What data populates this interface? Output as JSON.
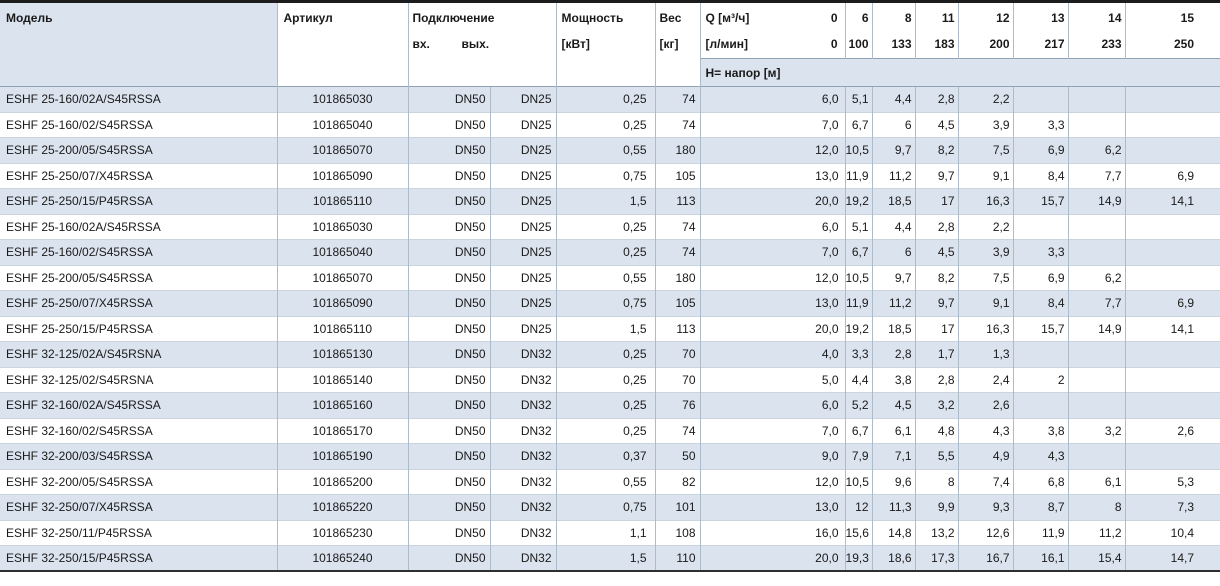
{
  "colors": {
    "shaded": "#dae3ee",
    "grid": "#aebcca",
    "rowline": "#c9d4e0",
    "hline": "#8fa2b5",
    "dark": "#1c1c1c",
    "text": "#1a1a1a"
  },
  "table": {
    "headers": {
      "model": "Модель",
      "article": "Артикул",
      "connection": "Подключение",
      "inlet": "вх.",
      "outlet": "вых.",
      "power": [
        "Мощность",
        "[кВт]"
      ],
      "weight": [
        "Вес",
        "[кг]"
      ],
      "q_m3h_label": "Q [м³/ч]",
      "q_m3h_zero": "0",
      "q_lmin_label": "[л/мин]",
      "q_lmin_zero": "0",
      "head_band": "Н= напор [м]",
      "flow_columns": [
        {
          "m3h": "6",
          "lmin": "100"
        },
        {
          "m3h": "8",
          "lmin": "133"
        },
        {
          "m3h": "11",
          "lmin": "183"
        },
        {
          "m3h": "12",
          "lmin": "200"
        },
        {
          "m3h": "13",
          "lmin": "217"
        },
        {
          "m3h": "14",
          "lmin": "233"
        },
        {
          "m3h": "15",
          "lmin": "250"
        }
      ]
    },
    "rows": [
      {
        "model": "ESHF 25-160/02A/S45RSSA",
        "article": "101865030",
        "inlet": "DN50",
        "outlet": "DN25",
        "power": "0,25",
        "weight": "74",
        "head": [
          "6,0",
          "5,1",
          "4,4",
          "2,8",
          "2,2",
          "",
          "",
          ""
        ]
      },
      {
        "model": "ESHF 25-160/02/S45RSSA",
        "article": "101865040",
        "inlet": "DN50",
        "outlet": "DN25",
        "power": "0,25",
        "weight": "74",
        "head": [
          "7,0",
          "6,7",
          "6",
          "4,5",
          "3,9",
          "3,3",
          "",
          ""
        ]
      },
      {
        "model": "ESHF 25-200/05/S45RSSA",
        "article": "101865070",
        "inlet": "DN50",
        "outlet": "DN25",
        "power": "0,55",
        "weight": "180",
        "head": [
          "12,0",
          "10,5",
          "9,7",
          "8,2",
          "7,5",
          "6,9",
          "6,2",
          ""
        ]
      },
      {
        "model": "ESHF 25-250/07/X45RSSA",
        "article": "101865090",
        "inlet": "DN50",
        "outlet": "DN25",
        "power": "0,75",
        "weight": "105",
        "head": [
          "13,0",
          "11,9",
          "11,2",
          "9,7",
          "9,1",
          "8,4",
          "7,7",
          "6,9"
        ]
      },
      {
        "model": "ESHF 25-250/15/P45RSSA",
        "article": "101865110",
        "inlet": "DN50",
        "outlet": "DN25",
        "power": "1,5",
        "weight": "113",
        "head": [
          "20,0",
          "19,2",
          "18,5",
          "17",
          "16,3",
          "15,7",
          "14,9",
          "14,1"
        ]
      },
      {
        "model": "ESHF 25-160/02A/S45RSSA",
        "article": "101865030",
        "inlet": "DN50",
        "outlet": "DN25",
        "power": "0,25",
        "weight": "74",
        "head": [
          "6,0",
          "5,1",
          "4,4",
          "2,8",
          "2,2",
          "",
          "",
          ""
        ]
      },
      {
        "model": "ESHF 25-160/02/S45RSSA",
        "article": "101865040",
        "inlet": "DN50",
        "outlet": "DN25",
        "power": "0,25",
        "weight": "74",
        "head": [
          "7,0",
          "6,7",
          "6",
          "4,5",
          "3,9",
          "3,3",
          "",
          ""
        ]
      },
      {
        "model": "ESHF 25-200/05/S45RSSA",
        "article": "101865070",
        "inlet": "DN50",
        "outlet": "DN25",
        "power": "0,55",
        "weight": "180",
        "head": [
          "12,0",
          "10,5",
          "9,7",
          "8,2",
          "7,5",
          "6,9",
          "6,2",
          ""
        ]
      },
      {
        "model": "ESHF 25-250/07/X45RSSA",
        "article": "101865090",
        "inlet": "DN50",
        "outlet": "DN25",
        "power": "0,75",
        "weight": "105",
        "head": [
          "13,0",
          "11,9",
          "11,2",
          "9,7",
          "9,1",
          "8,4",
          "7,7",
          "6,9"
        ]
      },
      {
        "model": "ESHF 25-250/15/P45RSSA",
        "article": "101865110",
        "inlet": "DN50",
        "outlet": "DN25",
        "power": "1,5",
        "weight": "113",
        "head": [
          "20,0",
          "19,2",
          "18,5",
          "17",
          "16,3",
          "15,7",
          "14,9",
          "14,1"
        ]
      },
      {
        "model": "ESHF 32-125/02A/S45RSNA",
        "article": "101865130",
        "inlet": "DN50",
        "outlet": "DN32",
        "power": "0,25",
        "weight": "70",
        "head": [
          "4,0",
          "3,3",
          "2,8",
          "1,7",
          "1,3",
          "",
          "",
          ""
        ]
      },
      {
        "model": "ESHF 32-125/02/S45RSNA",
        "article": "101865140",
        "inlet": "DN50",
        "outlet": "DN32",
        "power": "0,25",
        "weight": "70",
        "head": [
          "5,0",
          "4,4",
          "3,8",
          "2,8",
          "2,4",
          "2",
          "",
          ""
        ]
      },
      {
        "model": "ESHF 32-160/02A/S45RSSA",
        "article": "101865160",
        "inlet": "DN50",
        "outlet": "DN32",
        "power": "0,25",
        "weight": "76",
        "head": [
          "6,0",
          "5,2",
          "4,5",
          "3,2",
          "2,6",
          "",
          "",
          ""
        ]
      },
      {
        "model": "ESHF 32-160/02/S45RSSA",
        "article": "101865170",
        "inlet": "DN50",
        "outlet": "DN32",
        "power": "0,25",
        "weight": "74",
        "head": [
          "7,0",
          "6,7",
          "6,1",
          "4,8",
          "4,3",
          "3,8",
          "3,2",
          "2,6"
        ]
      },
      {
        "model": "ESHF 32-200/03/S45RSSA",
        "article": "101865190",
        "inlet": "DN50",
        "outlet": "DN32",
        "power": "0,37",
        "weight": "50",
        "head": [
          "9,0",
          "7,9",
          "7,1",
          "5,5",
          "4,9",
          "4,3",
          "",
          ""
        ]
      },
      {
        "model": "ESHF 32-200/05/S45RSSA",
        "article": "101865200",
        "inlet": "DN50",
        "outlet": "DN32",
        "power": "0,55",
        "weight": "82",
        "head": [
          "12,0",
          "10,5",
          "9,6",
          "8",
          "7,4",
          "6,8",
          "6,1",
          "5,3"
        ]
      },
      {
        "model": "ESHF 32-250/07/X45RSSA",
        "article": "101865220",
        "inlet": "DN50",
        "outlet": "DN32",
        "power": "0,75",
        "weight": "101",
        "head": [
          "13,0",
          "12",
          "11,3",
          "9,9",
          "9,3",
          "8,7",
          "8",
          "7,3"
        ]
      },
      {
        "model": "ESHF 32-250/11/P45RSSA",
        "article": "101865230",
        "inlet": "DN50",
        "outlet": "DN32",
        "power": "1,1",
        "weight": "108",
        "head": [
          "16,0",
          "15,6",
          "14,8",
          "13,2",
          "12,6",
          "11,9",
          "11,2",
          "10,4"
        ]
      },
      {
        "model": "ESHF 32-250/15/P45RSSA",
        "article": "101865240",
        "inlet": "DN50",
        "outlet": "DN32",
        "power": "1,5",
        "weight": "110",
        "head": [
          "20,0",
          "19,3",
          "18,6",
          "17,3",
          "16,7",
          "16,1",
          "15,4",
          "14,7"
        ]
      }
    ]
  }
}
